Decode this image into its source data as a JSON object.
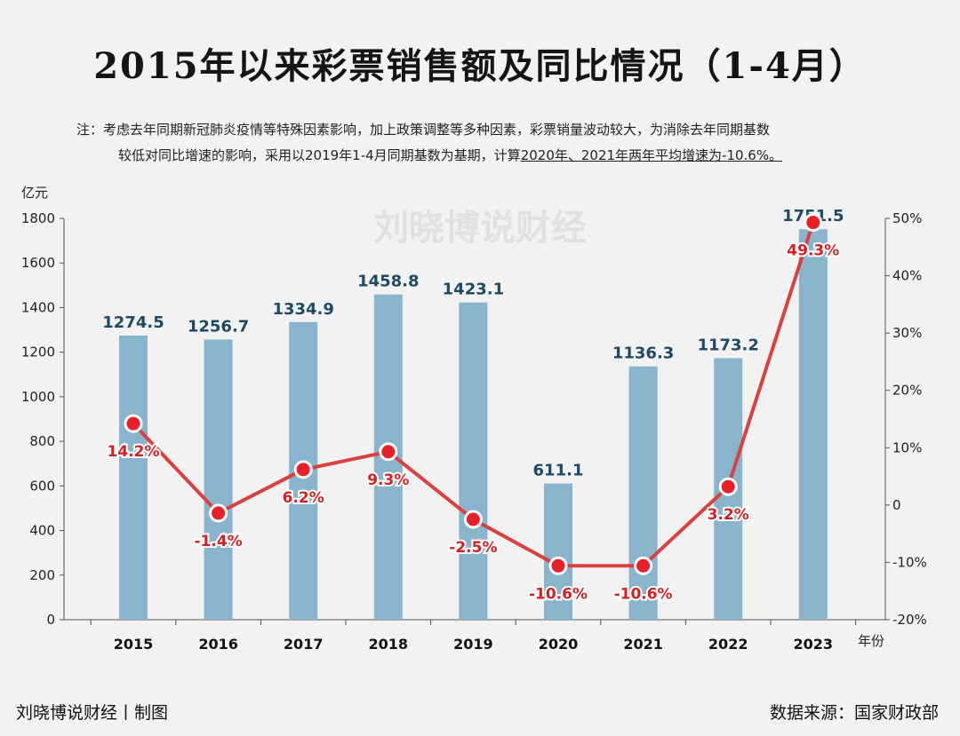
{
  "title": "2015年以来彩票销售额及同比情况（1-4月）",
  "note": {
    "line1": "注：考虑去年同期新冠肺炎疫情等特殊因素影响，加上政策调整等多种因素，彩票销量波动较大，为消除去年同期基数",
    "line2_prefix": "较低对同比增速的影响，采用以2019年1-4月同期基数为基期，计算",
    "line2_underlined": "2020年、2021年两年平均增速为-10.6%。"
  },
  "watermark": "刘晓博说财经",
  "footer": {
    "left": "刘晓博说财经丨制图",
    "right": "数据来源：国家财政部"
  },
  "colors": {
    "bar": "#8ab4cb",
    "line": "#d94040",
    "marker_fill": "#e8202a",
    "bar_label": "#1e4a66",
    "pct_label": "#d42020"
  },
  "chart_data": {
    "type": "bar",
    "categories": [
      "2015",
      "2016",
      "2017",
      "2018",
      "2019",
      "2020",
      "2021",
      "2022",
      "2023"
    ],
    "series": [
      {
        "type": "bar",
        "axis": "left",
        "values": [
          1274.5,
          1256.7,
          1334.9,
          1458.8,
          1423.1,
          611.1,
          1136.3,
          1173.2,
          1751.5
        ],
        "labels": [
          "1274.5",
          "1256.7",
          "1334.9",
          "1458.8",
          "1423.1",
          "611.1",
          "1136.3",
          "1173.2",
          "1751.5"
        ]
      },
      {
        "type": "line",
        "axis": "right",
        "values": [
          14.2,
          -1.4,
          6.2,
          9.3,
          -2.5,
          -10.6,
          -10.6,
          3.2,
          49.3
        ],
        "labels": [
          "14.2%",
          "-1.4%",
          "6.2%",
          "9.3%",
          "-2.5%",
          "-10.6%",
          "-10.6%",
          "3.2%",
          "49.3%"
        ]
      }
    ],
    "ylabel": "亿元",
    "xlabel": "年份",
    "ylim": [
      0,
      1800
    ],
    "yticks": [
      "0",
      "200",
      "400",
      "600",
      "800",
      "1000",
      "1200",
      "1400",
      "1600",
      "1800"
    ],
    "y2lim": [
      -20,
      50
    ],
    "y2ticks": [
      "-20%",
      "-10%",
      "0",
      "10%",
      "20%",
      "30%",
      "40%",
      "50%"
    ],
    "grid": false,
    "legend": "none"
  }
}
